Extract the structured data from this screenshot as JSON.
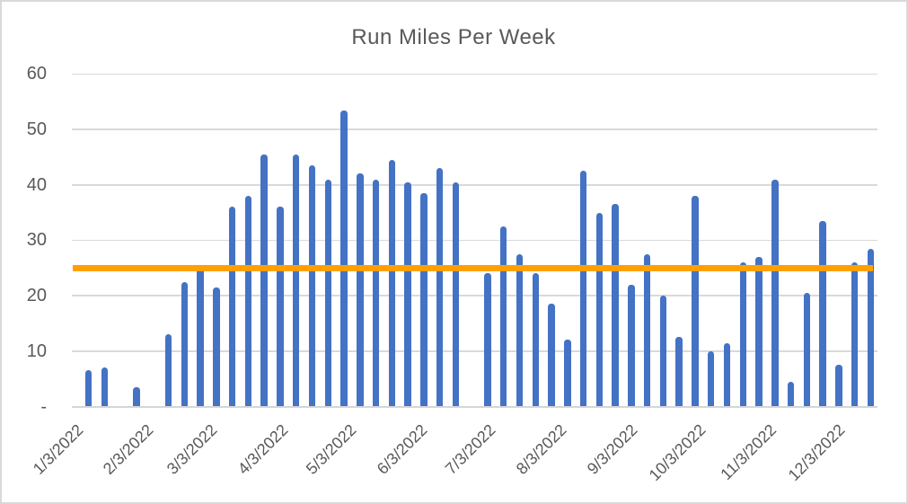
{
  "title": "Run Miles Per Week",
  "colors": {
    "bar": "#4472C4",
    "goal_line": "#FFA000",
    "gridline": "#D9D9D9",
    "text": "#595959",
    "background": "#FFFFFF",
    "frame_border": "#D9D9D9"
  },
  "chart_data": {
    "type": "bar",
    "title": "Run Miles Per Week",
    "xlabel": "",
    "ylabel": "",
    "ylim": [
      0,
      60
    ],
    "y_tick_step": 10,
    "grid": true,
    "legend_position": "none",
    "y_ticks": [
      {
        "value": 0,
        "label": "-"
      },
      {
        "value": 10,
        "label": "10"
      },
      {
        "value": 20,
        "label": "20"
      },
      {
        "value": 30,
        "label": "30"
      },
      {
        "value": 40,
        "label": "40"
      },
      {
        "value": 50,
        "label": "50"
      },
      {
        "value": 60,
        "label": "60"
      }
    ],
    "x_tick_labels": [
      "1/3/2022",
      "2/3/2022",
      "3/3/2022",
      "4/3/2022",
      "5/3/2022",
      "6/3/2022",
      "7/3/2022",
      "8/3/2022",
      "9/3/2022",
      "10/3/2022",
      "11/3/2022",
      "12/3/2022"
    ],
    "x_axis_type": "date-weekly",
    "x_start_date": "1/3/2022",
    "series": [
      {
        "name": "run-miles-per-week",
        "type": "bar",
        "color": "#4472C4",
        "values": [
          6.5,
          7,
          0,
          3.5,
          0,
          13,
          22.5,
          25.5,
          21.5,
          36,
          38,
          45.5,
          36,
          45.5,
          43.5,
          41,
          53.5,
          42,
          41,
          44.5,
          40.5,
          38.5,
          43,
          40.5,
          0,
          24,
          32.5,
          27.5,
          24,
          18.5,
          12,
          42.5,
          35,
          36.5,
          22,
          27.5,
          20,
          12.5,
          38,
          10,
          11.5,
          26,
          27,
          41,
          4.5,
          20.5,
          33.5,
          7.5,
          26,
          28.5
        ]
      },
      {
        "name": "goal-line",
        "type": "line",
        "color": "#FFA000",
        "constant_value": 25
      }
    ]
  }
}
